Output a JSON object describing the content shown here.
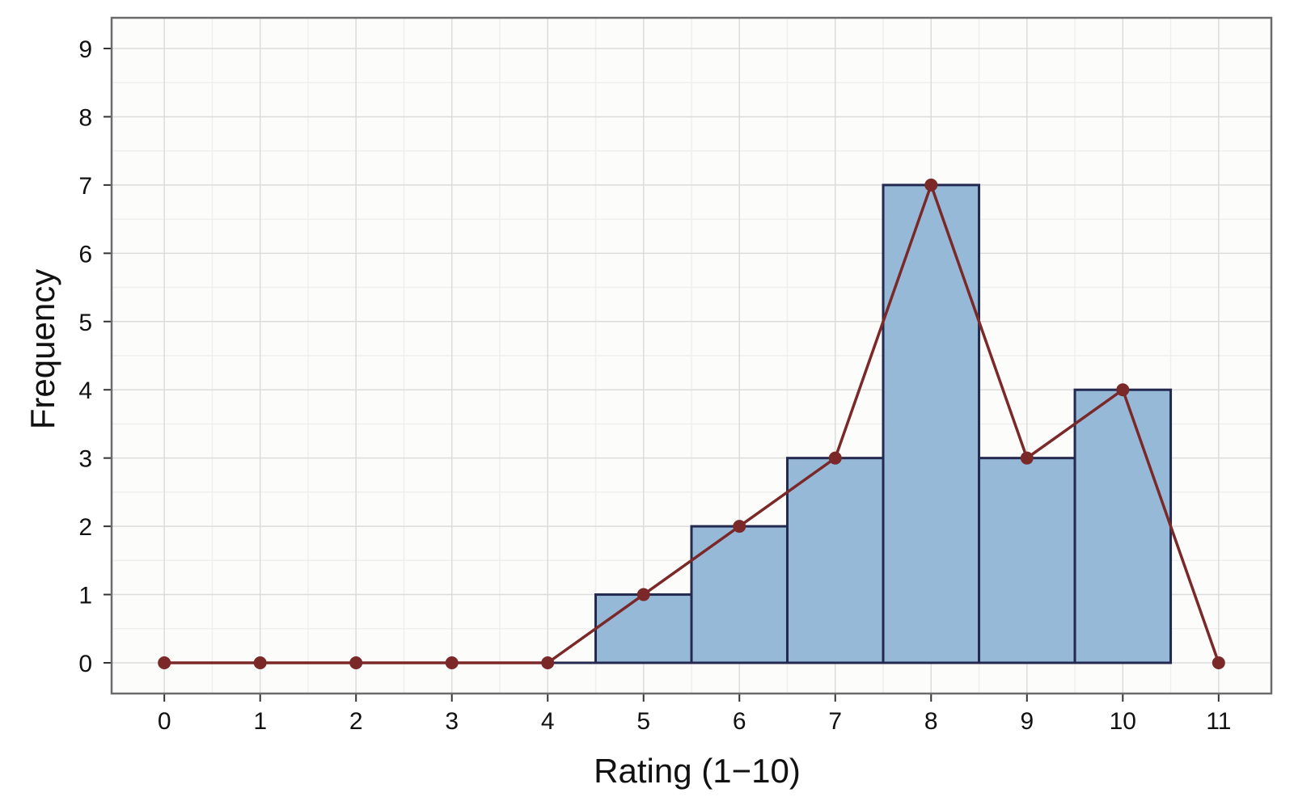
{
  "chart_data": {
    "type": "bar",
    "subtype": "histogram-with-frequency-polygon",
    "title": "",
    "xlabel": "Rating (1−10)",
    "ylabel": "Frequency",
    "xlim": [
      -0.55,
      11.55
    ],
    "ylim": [
      -0.45,
      9.45
    ],
    "xticks": [
      "0",
      "1",
      "2",
      "3",
      "4",
      "5",
      "6",
      "7",
      "8",
      "9",
      "10",
      "11"
    ],
    "yticks": [
      "0",
      "1",
      "2",
      "3",
      "4",
      "5",
      "6",
      "7",
      "8",
      "9"
    ],
    "grid": true,
    "legend": "none",
    "histogram": {
      "bin_width": 1,
      "centers": [
        1,
        2,
        3,
        4,
        5,
        6,
        7,
        8,
        9,
        10
      ],
      "values": [
        0,
        0,
        0,
        0,
        1,
        2,
        3,
        7,
        3,
        4
      ]
    },
    "polygon": {
      "x": [
        0,
        1,
        2,
        3,
        4,
        5,
        6,
        7,
        8,
        9,
        10,
        11
      ],
      "y": [
        0,
        0,
        0,
        0,
        0,
        1,
        2,
        3,
        7,
        3,
        4,
        0
      ]
    },
    "colors": {
      "bar_fill": "#96b9d8",
      "bar_edge": "#23294f",
      "line": "#7b2828",
      "panel_background": "#fcfcfa",
      "panel_border": "#6b6b6b",
      "grid_major": "#dcdcdc",
      "grid_minor": "#efefef"
    }
  }
}
